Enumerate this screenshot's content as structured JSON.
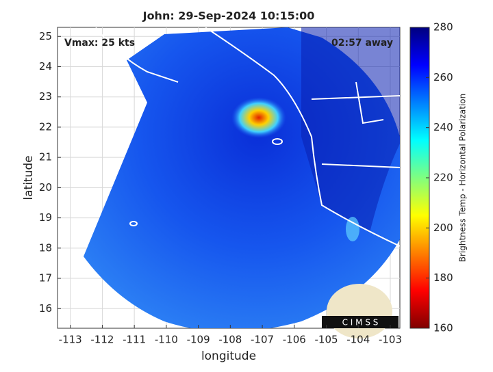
{
  "chart_data": {
    "type": "map",
    "title": "John: 29-Sep-2024 10:15:00",
    "annotations": [
      "Vmax: 25 kts",
      "02:57 away"
    ],
    "xlabel": "longitude",
    "ylabel": "latitude",
    "xlim": [
      -113.4,
      -102.7
    ],
    "ylim": [
      15.35,
      25.3
    ],
    "xticks": [
      -113,
      -112,
      -111,
      -110,
      -109,
      -108,
      -107,
      -106,
      -105,
      -104,
      -103
    ],
    "yticks": [
      16,
      17,
      18,
      19,
      20,
      21,
      22,
      23,
      24,
      25
    ],
    "grid": true,
    "colorbar": {
      "label": "Brightness Temp - Horizontal Polarization",
      "lim": [
        160,
        280
      ],
      "ticks": [
        160,
        180,
        200,
        220,
        240,
        260,
        280
      ],
      "colormap": "jet_r"
    },
    "logo": "C I M S S"
  }
}
